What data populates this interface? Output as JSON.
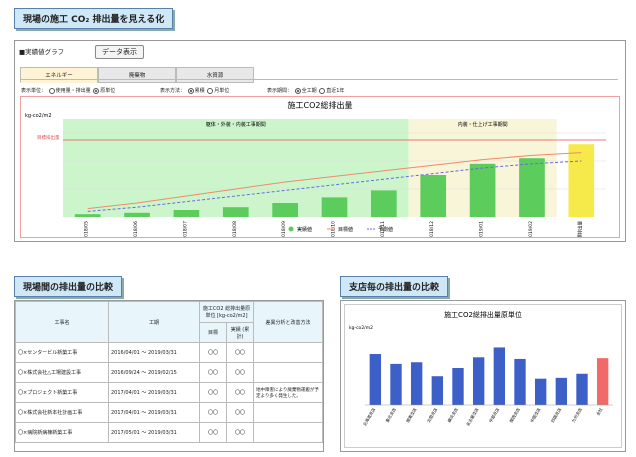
{
  "sections": {
    "top_title": "現場の施工 CO₂ 排出量を見える化",
    "compare_title": "現場間の排出量の比較",
    "branch_title": "支店毎の排出量の比較"
  },
  "graph_panel": {
    "label": "■実績値グラフ",
    "data_button": "データ表示",
    "tabs": [
      "エネルギー",
      "廃棄物",
      "水資源"
    ],
    "unit_label": "表示単位：",
    "unit_opts": [
      "使用量・排出量",
      "原単位"
    ],
    "method_label": "表示方法：",
    "method_opts": [
      "累積",
      "月単位"
    ],
    "period_label": "表示期間：",
    "period_opts": [
      "全工期",
      "直近1年"
    ]
  },
  "chart_data": {
    "type": "bar",
    "title": "施工CO2総排出量",
    "ylabel": "kg-co2/m2",
    "annotation_target": "目標排出量",
    "phase_labels": [
      "躯体・外装・内装工事期間",
      "内装・仕上げ工事期間"
    ],
    "categories": [
      "2018/05",
      "2018/06",
      "2018/07",
      "2018/08",
      "2018/09",
      "2018/10",
      "2018/11",
      "2018/12",
      "2019/01",
      "2019/02",
      "目標排出量"
    ],
    "values": [
      2,
      3,
      5,
      7,
      10,
      14,
      19,
      30,
      38,
      42,
      52
    ],
    "target_line": [
      6,
      10,
      15,
      20,
      25,
      29,
      33,
      37,
      41,
      44,
      46
    ],
    "forecast_line": [
      4,
      7,
      11,
      15,
      19,
      23,
      27,
      31,
      35,
      38,
      40
    ],
    "target_level": 55,
    "ylim": [
      0,
      70
    ],
    "legend": [
      "実績値",
      "目標値",
      "予測値"
    ],
    "colors": {
      "actual": "#5ccc5c",
      "target_bar": "#f6e94a",
      "target_line": "#f08a6a",
      "forecast_line": "#6a6ae0"
    }
  },
  "table": {
    "headers": {
      "name": "工事名",
      "period": "工期",
      "group": "施工CO2 総排出量原単位 [kg-co2/m2]",
      "target": "目標",
      "actual": "実績 (累計)",
      "analysis": "差異分析と改善方法"
    },
    "rows": [
      {
        "name": "〇×センタービル新築工事",
        "start": "2016/04/01",
        "end": "2019/03/31",
        "target": "〇〇",
        "actual": "〇〇",
        "note": ""
      },
      {
        "name": "〇×株式会社△工場建設工事",
        "start": "2016/09/24",
        "end": "2019/02/15",
        "target": "〇〇",
        "actual": "〇〇",
        "note": ""
      },
      {
        "name": "〇×プロジェクト新築工事",
        "start": "2017/04/01",
        "end": "2019/03/31",
        "target": "〇〇",
        "actual": "〇〇",
        "note": "地中障害により廃棄物運搬が予定より多く発生した。"
      },
      {
        "name": "〇×株式会社新本社計画工事",
        "start": "2017/04/01",
        "end": "2019/03/31",
        "target": "〇〇",
        "actual": "〇〇",
        "note": ""
      },
      {
        "name": "〇×病院新病棟新築工事",
        "start": "2017/05/01",
        "end": "2019/03/31",
        "target": "〇〇",
        "actual": "〇〇",
        "note": ""
      }
    ]
  },
  "branch_chart": {
    "type": "bar",
    "title": "施工CO2総排出量原単位",
    "ylabel": "kg-co2/m2",
    "categories": [
      "北海道支店",
      "東北支店",
      "関東支店",
      "北陸支店",
      "横浜支店",
      "名古屋支店",
      "中部支店",
      "関西支店",
      "中国支店",
      "四国支店",
      "九州支店",
      "全社"
    ],
    "values": [
      62,
      50,
      52,
      35,
      45,
      58,
      70,
      56,
      32,
      33,
      38,
      57
    ],
    "ylim": [
      0,
      90
    ],
    "colors": {
      "branch": "#3c5fc8",
      "total": "#f06a6a"
    }
  }
}
